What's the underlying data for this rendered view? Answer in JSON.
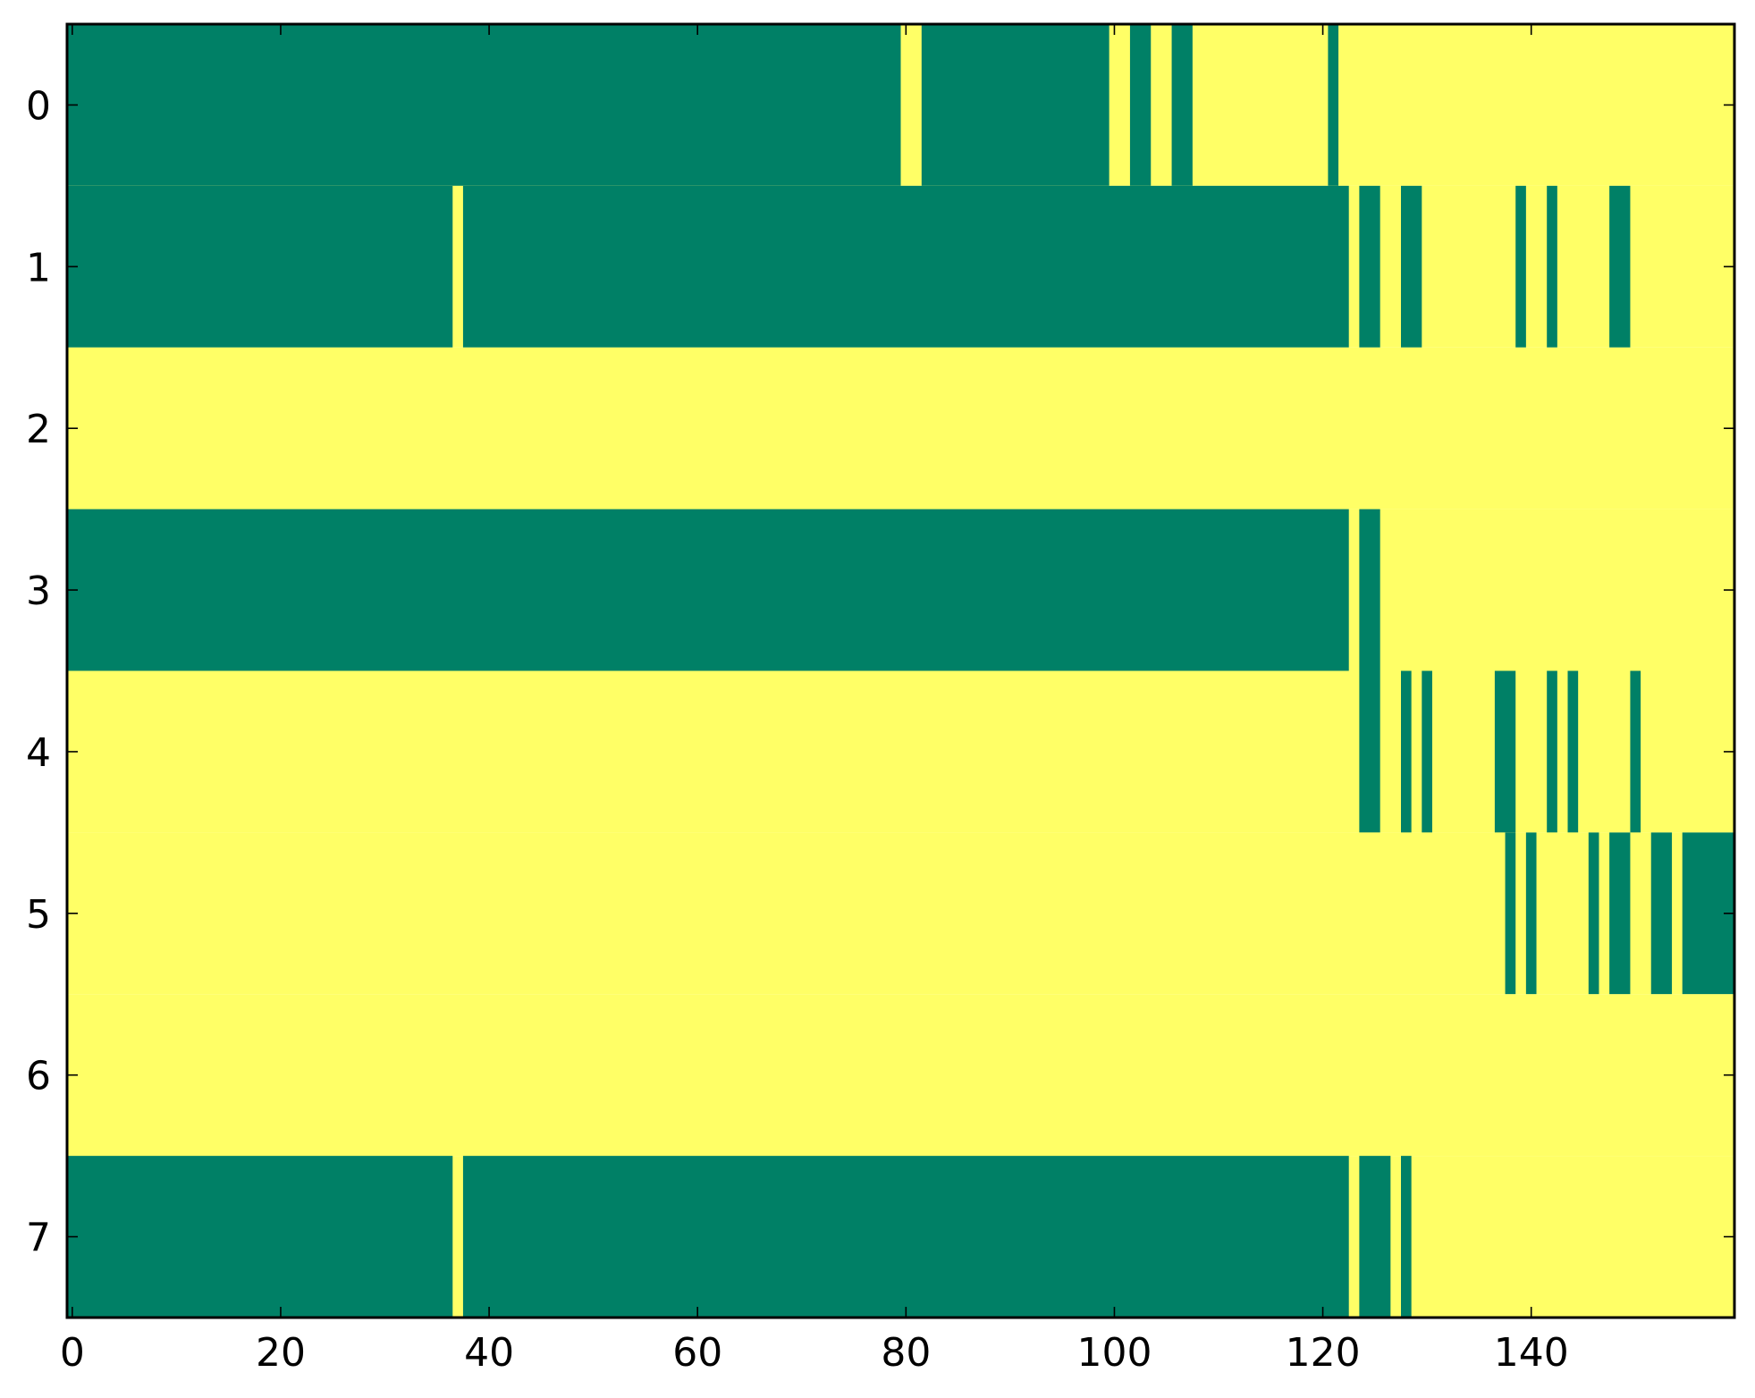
{
  "chart_data": {
    "type": "heatmap",
    "title": "",
    "xlabel": "",
    "ylabel": "",
    "xlim": [
      -0.5,
      159.5
    ],
    "ylim": [
      7.5,
      -0.5
    ],
    "n_cols": 160,
    "n_rows": 8,
    "x_ticks": [
      0,
      20,
      40,
      60,
      80,
      100,
      120,
      140
    ],
    "x_tick_labels": [
      "0",
      "20",
      "40",
      "60",
      "80",
      "100",
      "120",
      "140"
    ],
    "y_ticks": [
      0,
      1,
      2,
      3,
      4,
      5,
      6,
      7
    ],
    "y_tick_labels": [
      "0",
      "1",
      "2",
      "3",
      "4",
      "5",
      "6",
      "7"
    ],
    "value_colors": {
      "0": "#ffff66",
      "1": "#008066"
    },
    "grid": false,
    "legend": "none",
    "note_on_rows": "each row lists runs of value 1 as [start_col, end_col] inclusive; all other cells are value 0",
    "rows": [
      {
        "row": 0,
        "ones": [
          [
            0,
            79
          ],
          [
            82,
            99
          ],
          [
            102,
            103
          ],
          [
            106,
            107
          ],
          [
            121,
            121
          ]
        ]
      },
      {
        "row": 1,
        "ones": [
          [
            0,
            36
          ],
          [
            38,
            122
          ],
          [
            124,
            125
          ],
          [
            128,
            129
          ],
          [
            139,
            139
          ],
          [
            142,
            142
          ],
          [
            148,
            149
          ]
        ]
      },
      {
        "row": 2,
        "ones": []
      },
      {
        "row": 3,
        "ones": [
          [
            0,
            122
          ],
          [
            124,
            125
          ]
        ]
      },
      {
        "row": 4,
        "ones": [
          [
            124,
            125
          ],
          [
            128,
            128
          ],
          [
            130,
            130
          ],
          [
            137,
            138
          ],
          [
            142,
            142
          ],
          [
            144,
            144
          ],
          [
            150,
            150
          ]
        ]
      },
      {
        "row": 5,
        "ones": [
          [
            138,
            138
          ],
          [
            140,
            140
          ],
          [
            146,
            146
          ],
          [
            148,
            149
          ],
          [
            152,
            153
          ],
          [
            155,
            159
          ]
        ]
      },
      {
        "row": 6,
        "ones": []
      },
      {
        "row": 7,
        "ones": [
          [
            0,
            36
          ],
          [
            38,
            122
          ],
          [
            124,
            126
          ],
          [
            128,
            128
          ]
        ]
      }
    ]
  }
}
